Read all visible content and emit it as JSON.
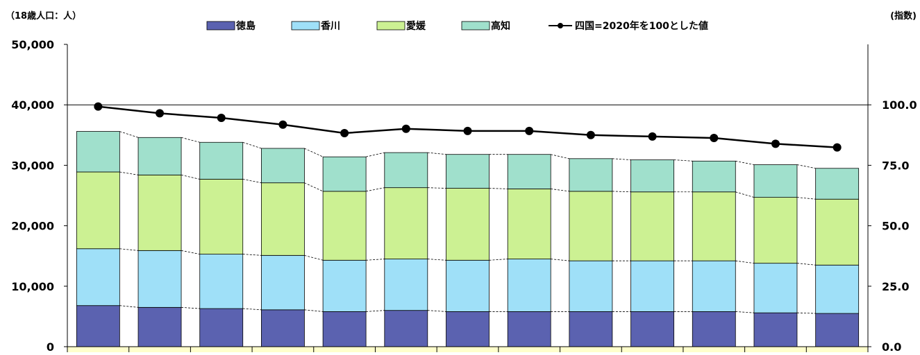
{
  "chart_data": {
    "type": "bar",
    "stacked": true,
    "left_axis_unit": "（18歳人口：人）",
    "right_axis_unit": "(指数)",
    "categories": [
      "",
      "",
      "",
      "",
      "",
      "",
      "",
      "",
      "",
      "",
      "",
      "",
      ""
    ],
    "series": [
      {
        "name": "徳島",
        "color": "#5b62b0",
        "values": [
          6800,
          6500,
          6300,
          6100,
          5800,
          6000,
          5800,
          5800,
          5800,
          5800,
          5800,
          5600,
          5500
        ]
      },
      {
        "name": "香川",
        "color": "#9fe0f8",
        "values": [
          9400,
          9400,
          9000,
          9000,
          8500,
          8500,
          8500,
          8700,
          8400,
          8400,
          8400,
          8200,
          8000
        ]
      },
      {
        "name": "愛媛",
        "color": "#ccf193",
        "values": [
          12700,
          12500,
          12400,
          12000,
          11400,
          11800,
          11900,
          11600,
          11500,
          11400,
          11400,
          10900,
          10900
        ]
      },
      {
        "name": "高知",
        "color": "#a0e0cc",
        "values": [
          6700,
          6200,
          6100,
          5700,
          5700,
          5800,
          5600,
          5700,
          5400,
          5300,
          5100,
          5400,
          5100
        ]
      }
    ],
    "index_series": {
      "name": "四国=2020年を100とした値",
      "color": "#000000",
      "values": [
        99.3,
        96.5,
        94.6,
        91.8,
        88.3,
        90.1,
        89.2,
        89.2,
        87.5,
        86.9,
        86.3,
        83.9,
        82.4
      ]
    },
    "left_axis": {
      "min": 0,
      "max": 50000,
      "step": 10000,
      "tick_labels": [
        "0",
        "10,000",
        "20,000",
        "30,000",
        "40,000",
        "50,000"
      ]
    },
    "right_axis": {
      "min": 0,
      "max": 125,
      "step": 25,
      "tick_labels": [
        "0.0",
        "25.0",
        "50.0",
        "75.0",
        "100.0"
      ]
    },
    "reference_line": 100,
    "legend_position": "top",
    "grid": false
  }
}
